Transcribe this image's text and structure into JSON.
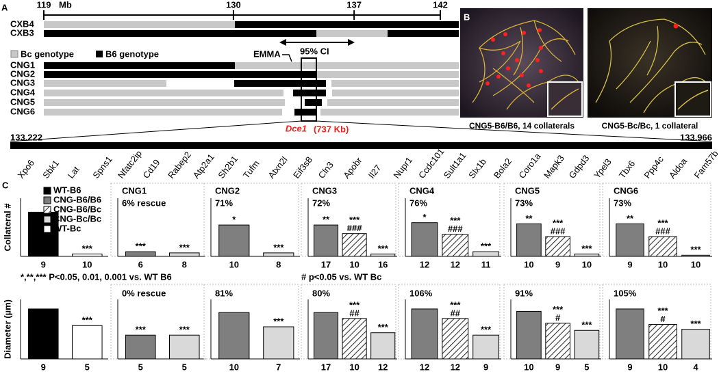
{
  "panel_a": {
    "label": "A",
    "scale": {
      "unit": "Mb",
      "ticks": [
        119,
        130,
        137,
        142
      ]
    },
    "strains": [
      "CXB4",
      "CXB3"
    ],
    "legend": [
      "Bc genotype",
      "B6 genotype"
    ],
    "emma": "EMMA",
    "ci": "95% CI",
    "congenics": [
      "CNG1",
      "CNG2",
      "CNG3",
      "CNG4",
      "CNG5",
      "CNG6"
    ],
    "zoom": {
      "gene": "Dce1",
      "size": "(737 Kb)",
      "start": 133.222,
      "end": 133.966,
      "genes": [
        "Xpo6",
        "Sbk1",
        "Lat",
        "Spns1",
        "Nfatc2ip",
        "Cd19",
        "Rabep2",
        "Atp2a1",
        "Sh2b1",
        "Tufm",
        "Atxn2l",
        "Eif3s8",
        "Cln3",
        "Apobr",
        "Il27",
        "Nupr1",
        "Ccdc101",
        "Sult1a1",
        "Slx1b",
        "Bola2",
        "Coro1a",
        "Mapk3",
        "Gdpd3",
        "Ypel3",
        "Tbx6",
        "Ppp4c",
        "Aldoa",
        "Fam57b"
      ]
    }
  },
  "panel_b": {
    "label": "B",
    "captions": [
      "CNG5-B6/B6, 14 collaterals",
      "CNG5-Bc/Bc,  1 collateral"
    ]
  },
  "panel_c": {
    "label": "C",
    "notes": [
      "*,**,*** P<0.05, 0.01, 0.001  vs. WT B6",
      "# p<0.05  vs. WT Bc"
    ]
  },
  "chart_data": [
    {
      "type": "bar",
      "ylabel": "Collateral #",
      "ylim": [
        0,
        25
      ],
      "legend": [
        {
          "name": "WT-B6",
          "fill": "#000000"
        },
        {
          "name": "CNG-B6/B6",
          "fill": "#7f7f7f"
        },
        {
          "name": "CNG-B6/Bc",
          "fill": "hatch"
        },
        {
          "name": "CNG-Bc/Bc",
          "fill": "#d9d9d9"
        },
        {
          "name": "WT-Bc",
          "fill": "#ffffff"
        }
      ],
      "categories": [
        9,
        10
      ],
      "values": [
        19,
        1
      ],
      "fills": [
        "#000000",
        "#ffffff"
      ],
      "annotations": [
        null,
        [
          "***"
        ]
      ]
    },
    {
      "type": "bar",
      "title": "CNG1",
      "subtitle": "6% rescue",
      "ylim": [
        0,
        25
      ],
      "categories": [
        6,
        8
      ],
      "values": [
        2,
        1.5
      ],
      "fills": [
        "#7f7f7f",
        "#d9d9d9"
      ],
      "annotations": [
        [
          "***"
        ],
        [
          "***"
        ]
      ]
    },
    {
      "type": "bar",
      "title": "CNG2",
      "subtitle": "71%",
      "ylim": [
        0,
        25
      ],
      "categories": [
        10,
        8
      ],
      "values": [
        13.5,
        1.5
      ],
      "fills": [
        "#7f7f7f",
        "#d9d9d9"
      ],
      "annotations": [
        [
          "*"
        ],
        [
          "***"
        ]
      ]
    },
    {
      "type": "bar",
      "title": "CNG3",
      "subtitle": "72%",
      "ylim": [
        0,
        25
      ],
      "categories": [
        17,
        10,
        16
      ],
      "values": [
        13.5,
        9.8,
        1
      ],
      "fills": [
        "#7f7f7f",
        "hatch",
        "#d9d9d9"
      ],
      "annotations": [
        [
          "**"
        ],
        [
          "***",
          "###"
        ],
        [
          "***"
        ]
      ]
    },
    {
      "type": "bar",
      "title": "CNG4",
      "subtitle": "76%",
      "ylim": [
        0,
        25
      ],
      "categories": [
        12,
        12,
        11
      ],
      "values": [
        14.5,
        9.5,
        2
      ],
      "fills": [
        "#7f7f7f",
        "hatch",
        "#d9d9d9"
      ],
      "annotations": [
        [
          "*"
        ],
        [
          "***",
          "###"
        ],
        [
          "***"
        ]
      ]
    },
    {
      "type": "bar",
      "title": "CNG5",
      "subtitle": "73%",
      "ylim": [
        0,
        25
      ],
      "categories": [
        10,
        9,
        10
      ],
      "values": [
        14,
        8.5,
        1
      ],
      "fills": [
        "#7f7f7f",
        "hatch",
        "#d9d9d9"
      ],
      "annotations": [
        [
          "**"
        ],
        [
          "***",
          "###"
        ],
        [
          "***"
        ]
      ]
    },
    {
      "type": "bar",
      "title": "CNG6",
      "subtitle": "73%",
      "ylim": [
        0,
        25
      ],
      "categories": [
        9,
        10,
        10
      ],
      "values": [
        14,
        8.5,
        0.5
      ],
      "fills": [
        "#7f7f7f",
        "hatch",
        "#d9d9d9"
      ],
      "annotations": [
        [
          "**"
        ],
        [
          "***",
          "###"
        ],
        [
          "***"
        ]
      ]
    },
    {
      "type": "bar",
      "ylabel": "Diameter (µm)",
      "ylim": [
        0,
        25
      ],
      "categories": [
        9,
        5
      ],
      "values": [
        21,
        14
      ],
      "fills": [
        "#000000",
        "#ffffff"
      ],
      "annotations": [
        null,
        [
          "***"
        ]
      ]
    },
    {
      "type": "bar",
      "subtitle": "0% rescue",
      "ylim": [
        0,
        25
      ],
      "categories": [
        5,
        5
      ],
      "values": [
        10,
        10
      ],
      "fills": [
        "#7f7f7f",
        "#d9d9d9"
      ],
      "annotations": [
        [
          "***"
        ],
        [
          "***"
        ]
      ]
    },
    {
      "type": "bar",
      "subtitle": "81%",
      "ylim": [
        0,
        25
      ],
      "categories": [
        10,
        7
      ],
      "values": [
        19.5,
        13.5
      ],
      "fills": [
        "#7f7f7f",
        "#d9d9d9"
      ],
      "annotations": [
        null,
        [
          "***"
        ]
      ]
    },
    {
      "type": "bar",
      "subtitle": "80%",
      "ylim": [
        0,
        25
      ],
      "categories": [
        17,
        10,
        12
      ],
      "values": [
        19.5,
        17,
        11
      ],
      "fills": [
        "#7f7f7f",
        "hatch",
        "#d9d9d9"
      ],
      "annotations": [
        null,
        [
          "***",
          "##"
        ],
        [
          "***"
        ]
      ]
    },
    {
      "type": "bar",
      "subtitle": "106%",
      "ylim": [
        0,
        25
      ],
      "categories": [
        12,
        12,
        9
      ],
      "values": [
        21,
        17,
        10
      ],
      "fills": [
        "#7f7f7f",
        "hatch",
        "#d9d9d9"
      ],
      "annotations": [
        null,
        [
          "***",
          "##"
        ],
        [
          "***"
        ]
      ]
    },
    {
      "type": "bar",
      "subtitle": "91%",
      "ylim": [
        0,
        25
      ],
      "categories": [
        10,
        9,
        5
      ],
      "values": [
        20,
        15,
        12
      ],
      "fills": [
        "#7f7f7f",
        "hatch",
        "#d9d9d9"
      ],
      "annotations": [
        null,
        [
          "***",
          "#"
        ],
        [
          "***"
        ]
      ]
    },
    {
      "type": "bar",
      "subtitle": "105%",
      "ylim": [
        0,
        25
      ],
      "categories": [
        9,
        10,
        4
      ],
      "values": [
        21,
        14.5,
        12.5
      ],
      "fills": [
        "#7f7f7f",
        "hatch",
        "#d9d9d9"
      ],
      "annotations": [
        null,
        [
          "***",
          "#"
        ],
        [
          "***"
        ]
      ]
    }
  ]
}
